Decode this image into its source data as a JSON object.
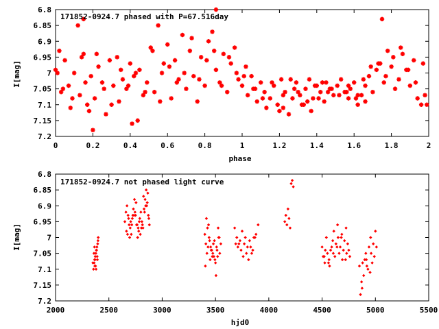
{
  "chart_data": [
    {
      "type": "scatter",
      "title": "171852-0924.7 phased with P=67.516day",
      "xlabel": "phase",
      "ylabel": "I[mag]",
      "xlim": [
        0,
        2
      ],
      "ylim": [
        7.2,
        6.8
      ],
      "y_inverted": true,
      "xticks": [
        "0",
        "0.2",
        "0.4",
        "0.6",
        "0.8",
        "1",
        "1.2",
        "1.4",
        "1.6",
        "1.8",
        "2"
      ],
      "yticks": [
        "6.8",
        "6.85",
        "6.9",
        "6.95",
        "7",
        "7.05",
        "7.1",
        "7.15",
        "7.2"
      ],
      "grid": false,
      "marker_color": "#ff0000",
      "series": [
        {
          "x": [
            0.0,
            0.02,
            0.03,
            0.05,
            0.07,
            0.08,
            0.1,
            0.12,
            0.13,
            0.15,
            0.17,
            0.19,
            0.2,
            0.21,
            0.23,
            0.25,
            0.27,
            0.29,
            0.31,
            0.33,
            0.34,
            0.36,
            0.38,
            0.4,
            0.42,
            0.44,
            0.45,
            0.47,
            0.49,
            0.51,
            0.53,
            0.55,
            0.57,
            0.58,
            0.6,
            0.62,
            0.64,
            0.66,
            0.68,
            0.7,
            0.72,
            0.74,
            0.76,
            0.78,
            0.8,
            0.82,
            0.84,
            0.86,
            0.88,
            0.9,
            0.92,
            0.94,
            0.96,
            0.98,
            1.0,
            1.02,
            1.03,
            1.05,
            1.07,
            1.08,
            1.1,
            1.12,
            1.13,
            1.15,
            1.17,
            1.19,
            1.2,
            1.21,
            1.23,
            1.25,
            1.27,
            1.29,
            1.31,
            1.33,
            1.34,
            1.36,
            1.38,
            1.4,
            1.42,
            1.44,
            1.45,
            1.47,
            1.49,
            1.51,
            1.53,
            1.55,
            1.57,
            1.58,
            1.6,
            1.62,
            1.64,
            1.66,
            1.68,
            1.7,
            1.72,
            1.74,
            1.76,
            1.78,
            1.8,
            1.82,
            1.84,
            1.86,
            1.88,
            1.9,
            1.92,
            1.94,
            1.96,
            1.98,
            0.01,
            0.04,
            0.09,
            0.14,
            0.18,
            0.22,
            0.26,
            0.3,
            0.35,
            0.39,
            0.43,
            0.48,
            0.52,
            0.56,
            0.61,
            0.65,
            0.69,
            0.73,
            0.77,
            0.81,
            0.85,
            0.89,
            0.93,
            0.97,
            1.01,
            1.06,
            1.11,
            1.16,
            1.22,
            1.26,
            1.3,
            1.35,
            1.39,
            1.43,
            1.48,
            1.52,
            1.56,
            1.61,
            1.65,
            1.69,
            1.73,
            1.77,
            1.81,
            1.85,
            1.89,
            1.93,
            1.97,
            1.99,
            0.16,
            0.86,
            0.15,
            0.41,
            1.75,
            1.22,
            1.28,
            1.32,
            1.37,
            1.41,
            1.46,
            1.57,
            1.62,
            1.66
          ],
          "y": [
            6.99,
            6.93,
            7.06,
            6.96,
            7.04,
            7.11,
            7.0,
            6.85,
            7.07,
            6.94,
            7.1,
            7.01,
            7.18,
            7.08,
            6.98,
            7.03,
            7.13,
            6.96,
            7.04,
            6.95,
            7.09,
            7.02,
            7.05,
            6.97,
            7.01,
            7.15,
            6.99,
            7.07,
            7.03,
            6.92,
            7.06,
            6.85,
            7.0,
            6.97,
            6.91,
            7.08,
            6.96,
            7.02,
            6.88,
            7.05,
            6.93,
            7.01,
            7.09,
            6.95,
            7.04,
            6.9,
            6.87,
            6.99,
            7.03,
            6.94,
            7.06,
            6.97,
            6.92,
            7.02,
            7.04,
            6.98,
            7.07,
            7.01,
            7.05,
            7.09,
            7.03,
            7.06,
            7.11,
            7.08,
            7.04,
            7.1,
            7.12,
            7.02,
            7.06,
            7.13,
            7.08,
            7.03,
            7.07,
            7.1,
            7.05,
            7.02,
            7.08,
            7.04,
            7.06,
            7.09,
            7.03,
            7.05,
            7.07,
            7.04,
            7.02,
            7.06,
            7.08,
            7.05,
            7.03,
            7.1,
            7.07,
            7.04,
            7.01,
            7.06,
            6.99,
            6.97,
            7.03,
            6.93,
            6.98,
            7.05,
            7.02,
            6.94,
            6.99,
            7.04,
            6.96,
            7.08,
            7.1,
            7.07,
            7.0,
            7.05,
            7.08,
            6.95,
            7.12,
            6.94,
            7.05,
            7.1,
            6.99,
            7.04,
            7.0,
            7.06,
            6.93,
            7.09,
            6.98,
            7.03,
            7.0,
            6.89,
            7.02,
            6.96,
            6.93,
            7.04,
            6.95,
            7.0,
            7.01,
            7.05,
            7.08,
            7.03,
            7.07,
            7.02,
            7.06,
            7.09,
            7.04,
            7.03,
            7.05,
            7.07,
            7.06,
            7.08,
            7.02,
            6.98,
            6.97,
            7.01,
            6.95,
            6.92,
            6.99,
            7.03,
            6.97,
            7.1,
            7.03,
            6.8,
            6.83,
            7.16,
            6.83,
            7.11,
            7.05,
            7.1,
            7.12,
            7.08,
            7.06,
            7.04,
            7.07,
            7.09
          ]
        }
      ]
    },
    {
      "type": "scatter",
      "title": "171852-0924.7 not phased light curve",
      "xlabel": "hjd0",
      "ylabel": "I[mag]",
      "xlim": [
        2000,
        5500
      ],
      "ylim": [
        7.2,
        6.8
      ],
      "y_inverted": true,
      "xticks": [
        "2000",
        "2500",
        "3000",
        "3500",
        "4000",
        "4500",
        "5000",
        "5500"
      ],
      "yticks": [
        "6.8",
        "6.85",
        "6.9",
        "6.95",
        "7",
        "7.05",
        "7.1",
        "7.15",
        "7.2"
      ],
      "grid": false,
      "marker_color": "#ff0000",
      "series": [
        {
          "x": [
            2350,
            2360,
            2365,
            2370,
            2375,
            2380,
            2385,
            2390,
            2395,
            2400,
            2362,
            2372,
            2382,
            2392,
            2378,
            2368,
            2388,
            2398,
            2356,
            2366,
            2650,
            2660,
            2670,
            2680,
            2690,
            2700,
            2710,
            2720,
            2730,
            2740,
            2750,
            2760,
            2770,
            2780,
            2790,
            2800,
            2810,
            2820,
            2830,
            2840,
            2850,
            2860,
            2870,
            2880,
            2665,
            2685,
            2705,
            2725,
            2745,
            2765,
            2785,
            2805,
            2825,
            2845,
            2865,
            2675,
            2695,
            2715,
            2735,
            2755,
            2775,
            2795,
            2815,
            2835,
            2855,
            2875,
            3400,
            3410,
            3420,
            3430,
            3440,
            3450,
            3460,
            3470,
            3480,
            3490,
            3500,
            3510,
            3520,
            3530,
            3540,
            3550,
            3415,
            3435,
            3455,
            3475,
            3495,
            3515,
            3535,
            3425,
            3445,
            3465,
            3485,
            3505,
            3525,
            3405,
            3680,
            3700,
            3720,
            3740,
            3760,
            3780,
            3800,
            3820,
            3840,
            3860,
            3880,
            3900,
            3710,
            3730,
            3750,
            3770,
            3790,
            3810,
            3830,
            3850,
            3870,
            3690,
            4150,
            4160,
            4170,
            4180,
            4190,
            4200,
            4210,
            4220,
            4230,
            4500,
            4520,
            4540,
            4560,
            4580,
            4600,
            4620,
            4640,
            4660,
            4680,
            4700,
            4720,
            4740,
            4760,
            4510,
            4530,
            4550,
            4570,
            4590,
            4610,
            4630,
            4650,
            4670,
            4690,
            4710,
            4730,
            4750,
            4525,
            4565,
            4605,
            4645,
            4685,
            4725,
            4850,
            4870,
            4890,
            4910,
            4930,
            4950,
            4970,
            4990,
            5010,
            4860,
            4880,
            4900,
            4920,
            4940,
            4960,
            4980,
            5000,
            4875,
            4915,
            4955
          ],
          "y": [
            7.08,
            7.05,
            7.03,
            7.07,
            7.09,
            7.1,
            7.04,
            7.06,
            7.02,
            7.0,
            7.08,
            7.06,
            7.04,
            7.07,
            7.05,
            7.09,
            7.03,
            7.01,
            7.1,
            7.07,
            6.95,
            6.92,
            6.9,
            6.93,
            6.96,
            6.97,
            6.99,
            6.94,
            6.91,
            6.88,
            6.93,
            6.96,
            7.0,
            6.98,
            6.94,
            6.92,
            6.95,
            6.97,
            6.91,
            6.88,
            6.85,
            6.89,
            6.93,
            6.96,
            6.98,
            6.94,
            6.95,
            6.93,
            6.92,
            6.96,
            6.95,
            6.97,
            6.87,
            6.9,
            6.86,
            6.99,
            7.0,
            6.96,
            6.93,
            6.89,
            6.97,
            6.99,
            6.96,
            6.92,
            6.9,
            6.94,
            6.99,
            7.02,
            7.05,
            7.03,
            7.0,
            7.07,
            7.04,
            7.06,
            7.02,
            7.01,
            7.08,
            7.03,
            7.06,
            7.0,
            7.05,
            7.02,
            6.94,
            6.96,
            7.03,
            7.05,
            7.07,
            7.04,
            7.0,
            6.97,
            7.01,
            7.04,
            7.06,
            7.12,
            6.97,
            7.09,
            6.97,
            7.0,
            7.02,
            7.04,
            7.06,
            7.0,
            7.03,
            7.01,
            7.05,
            7.0,
            6.99,
            6.96,
            7.03,
            7.01,
            6.98,
            7.02,
            7.05,
            7.07,
            7.03,
            7.04,
            7.0,
            7.02,
            6.95,
            6.93,
            6.96,
            6.91,
            6.94,
            6.97,
            6.83,
            6.82,
            6.84,
            7.03,
            7.06,
            7.0,
            7.08,
            7.04,
            7.01,
            7.06,
            7.03,
            7.05,
            7.0,
            7.04,
            7.07,
            7.02,
            7.06,
            7.06,
            7.04,
            7.05,
            7.09,
            7.03,
            6.98,
            7.02,
            7.0,
            7.03,
            7.07,
            7.01,
            7.05,
            7.04,
            7.08,
            7.07,
            7.05,
            6.96,
            6.99,
            6.97,
            7.09,
            7.14,
            7.12,
            7.05,
            7.1,
            7.11,
            7.08,
            7.06,
            7.03,
            7.18,
            7.08,
            7.07,
            7.09,
            7.03,
            7.05,
            7.02,
            6.98,
            7.16,
            7.07,
            7.0
          ]
        }
      ]
    }
  ]
}
